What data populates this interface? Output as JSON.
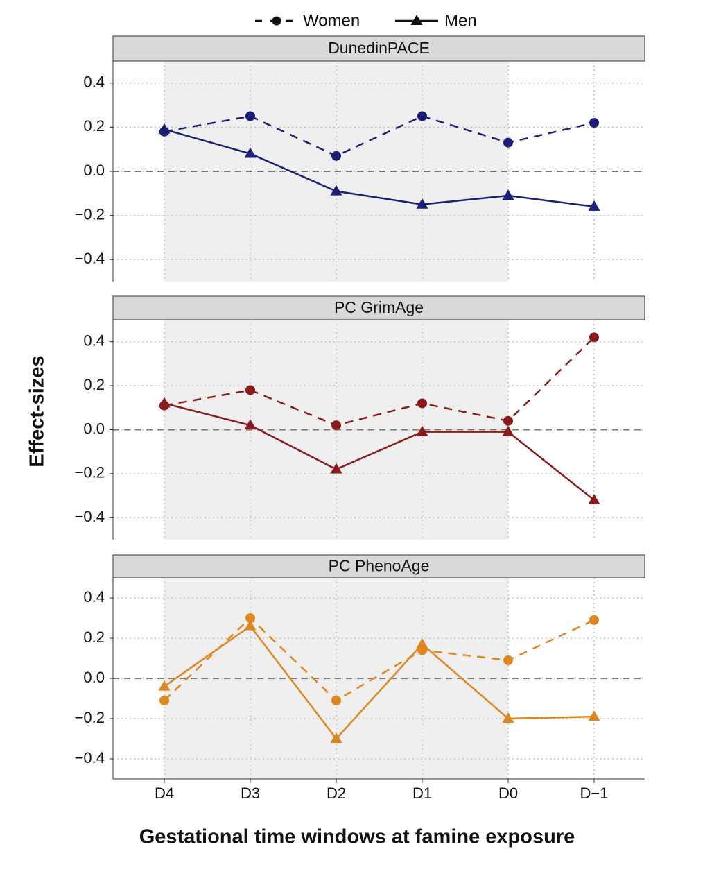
{
  "chart_data": {
    "type": "line",
    "x_label": "Gestational time windows at famine exposure",
    "y_label": "Effect-sizes",
    "categories": [
      "D4",
      "D3",
      "D2",
      "D1",
      "D0",
      "D−1"
    ],
    "grid": true,
    "reference_line": 0,
    "panels": [
      {
        "title": "DunedinPACE",
        "ylim": [
          -0.5,
          0.5
        ],
        "yticks": [
          {
            "value": -0.4,
            "label": "−0.4"
          },
          {
            "value": -0.2,
            "label": "−0.2"
          },
          {
            "value": 0,
            "label": "0.0"
          },
          0.2,
          0.4
        ],
        "series": [
          {
            "name": "Women",
            "color": "#1b1f7a",
            "linestyle": "dashed",
            "marker": "circle",
            "values": [
              0.18,
              0.25,
              0.07,
              0.25,
              0.13,
              0.22
            ]
          },
          {
            "name": "Men",
            "color": "#1b1f7a",
            "linestyle": "solid",
            "marker": "triangle",
            "values": [
              0.19,
              0.08,
              -0.09,
              -0.15,
              -0.11,
              -0.16
            ]
          }
        ]
      },
      {
        "title": "PC GrimAge",
        "ylim": [
          -0.5,
          0.5
        ],
        "yticks": [
          {
            "value": -0.4,
            "label": "−0.4"
          },
          {
            "value": -0.2,
            "label": "−0.2"
          },
          {
            "value": 0,
            "label": "0.0"
          },
          0.2,
          0.4
        ],
        "series": [
          {
            "name": "Women",
            "color": "#8b1a1a",
            "linestyle": "dashed",
            "marker": "circle",
            "values": [
              0.11,
              0.18,
              0.02,
              0.12,
              0.04,
              0.42
            ]
          },
          {
            "name": "Men",
            "color": "#8b1a1a",
            "linestyle": "solid",
            "marker": "triangle",
            "values": [
              0.12,
              0.02,
              -0.18,
              -0.01,
              -0.01,
              -0.32
            ]
          }
        ]
      },
      {
        "title": "PC PhenoAge",
        "ylim": [
          -0.5,
          0.5
        ],
        "yticks": [
          {
            "value": -0.4,
            "label": "−0.4"
          },
          {
            "value": -0.2,
            "label": "−0.2"
          },
          {
            "value": 0,
            "label": "0.0"
          },
          0.2,
          0.4
        ],
        "series": [
          {
            "name": "Women",
            "color": "#e0861e",
            "linestyle": "dashed",
            "marker": "circle",
            "values": [
              -0.11,
              0.3,
              -0.11,
              0.14,
              0.09,
              0.29
            ]
          },
          {
            "name": "Men",
            "color": "#e0861e",
            "linestyle": "solid",
            "marker": "triangle",
            "values": [
              -0.04,
              0.26,
              -0.3,
              0.17,
              -0.2,
              -0.19
            ]
          }
        ]
      }
    ]
  }
}
